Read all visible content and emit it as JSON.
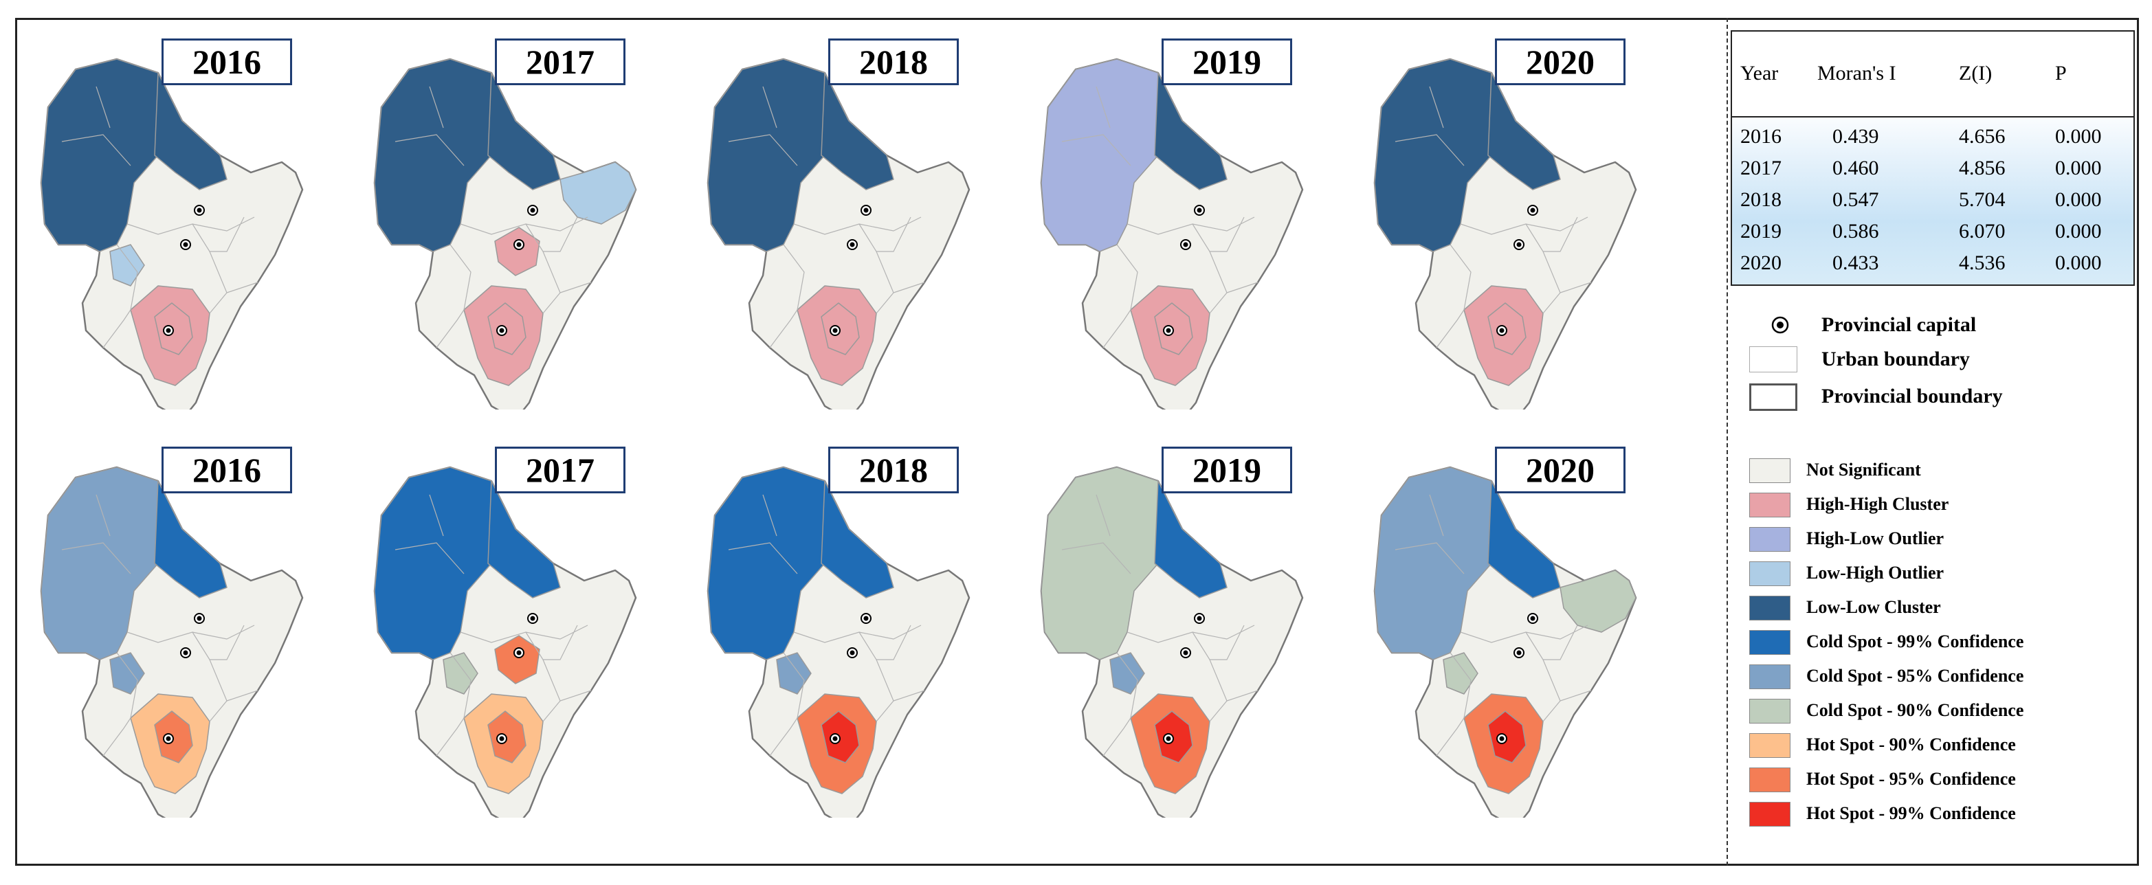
{
  "colors": {
    "not_significant": "#f1f1ec",
    "high_high_cluster": "#e8a2a8",
    "high_low_outlier": "#a6b2df",
    "low_high_outlier": "#aecde6",
    "low_low_cluster": "#2f5d88",
    "cold_99": "#1f6cb5",
    "cold_95": "#7fa2c6",
    "cold_90": "#bfcebd",
    "hot_90": "#fdc08c",
    "hot_95": "#f47d55",
    "hot_99": "#ee2e23",
    "boundary": "#9a9a9a"
  },
  "rows": [
    {
      "name": "lisa",
      "maps": [
        {
          "year": "2016",
          "ne": "low_low_cluster",
          "nw": "low_low_cluster",
          "east_ring": "not_significant",
          "center": "not_significant",
          "south": "high_high_cluster",
          "south_core": "high_high_cluster",
          "extra": "low_high_outlier"
        },
        {
          "year": "2017",
          "ne": "low_low_cluster",
          "nw": "low_low_cluster",
          "east_ring": "low_high_outlier",
          "center": "high_high_cluster",
          "south": "high_high_cluster",
          "south_core": "high_high_cluster",
          "extra": "not_significant"
        },
        {
          "year": "2018",
          "ne": "low_low_cluster",
          "nw": "low_low_cluster",
          "east_ring": "not_significant",
          "center": "not_significant",
          "south": "high_high_cluster",
          "south_core": "high_high_cluster",
          "extra": "not_significant"
        },
        {
          "year": "2019",
          "ne": "low_low_cluster",
          "nw": "high_low_outlier",
          "east_ring": "not_significant",
          "center": "not_significant",
          "south": "high_high_cluster",
          "south_core": "high_high_cluster",
          "extra": "not_significant"
        },
        {
          "year": "2020",
          "ne": "low_low_cluster",
          "nw": "low_low_cluster",
          "east_ring": "not_significant",
          "center": "not_significant",
          "south": "high_high_cluster",
          "south_core": "high_high_cluster",
          "extra": "not_significant"
        }
      ]
    },
    {
      "name": "hotspot",
      "maps": [
        {
          "year": "2016",
          "ne": "cold_99",
          "nw": "cold_95",
          "east_ring": "not_significant",
          "center": "not_significant",
          "south": "hot_90",
          "south_core": "hot_95",
          "extra": "cold_95"
        },
        {
          "year": "2017",
          "ne": "cold_99",
          "nw": "cold_99",
          "east_ring": "not_significant",
          "center": "hot_95",
          "south": "hot_90",
          "south_core": "hot_95",
          "extra": "cold_90"
        },
        {
          "year": "2018",
          "ne": "cold_99",
          "nw": "cold_99",
          "east_ring": "not_significant",
          "center": "not_significant",
          "south": "hot_95",
          "south_core": "hot_99",
          "extra": "cold_95"
        },
        {
          "year": "2019",
          "ne": "cold_99",
          "nw": "cold_90",
          "east_ring": "not_significant",
          "center": "not_significant",
          "south": "hot_95",
          "south_core": "hot_99",
          "extra": "cold_95"
        },
        {
          "year": "2020",
          "ne": "cold_99",
          "nw": "cold_95",
          "east_ring": "cold_90",
          "center": "not_significant",
          "south": "hot_95",
          "south_core": "hot_99",
          "extra": "cold_90"
        }
      ]
    }
  ],
  "stats_table": {
    "headers": [
      "Year",
      "Moran's I",
      "Z(I)",
      "P"
    ],
    "rows": [
      [
        "2016",
        "0.439",
        "4.656",
        "0.000"
      ],
      [
        "2017",
        "0.460",
        "4.856",
        "0.000"
      ],
      [
        "2018",
        "0.547",
        "5.704",
        "0.000"
      ],
      [
        "2019",
        "0.586",
        "6.070",
        "0.000"
      ],
      [
        "2020",
        "0.433",
        "4.536",
        "0.000"
      ]
    ]
  },
  "legend_symbols": [
    {
      "label": "Provincial capital",
      "symbol": "capital-dot"
    },
    {
      "label": "Urban boundary",
      "symbol": "thin-box"
    },
    {
      "label": "Provincial boundary",
      "symbol": "thick-box"
    }
  ],
  "legend_classes": [
    {
      "label": "Not Significant",
      "color": "#f1f1ec"
    },
    {
      "label": "High-High Cluster",
      "color": "#e8a2a8"
    },
    {
      "label": "High-Low Outlier",
      "color": "#a6b2df"
    },
    {
      "label": "Low-High Outlier",
      "color": "#aecde6"
    },
    {
      "label": "Low-Low Cluster",
      "color": "#2f5d88"
    },
    {
      "label": "Cold Spot - 99% Confidence",
      "color": "#1f6cb5"
    },
    {
      "label": "Cold Spot - 95% Confidence",
      "color": "#7fa2c6"
    },
    {
      "label": "Cold Spot - 90% Confidence",
      "color": "#bfcebd"
    },
    {
      "label": "Hot Spot - 90% Confidence",
      "color": "#fdc08c"
    },
    {
      "label": "Hot Spot - 95% Confidence",
      "color": "#f47d55"
    },
    {
      "label": "Hot Spot - 99% Confidence",
      "color": "#ee2e23"
    }
  ]
}
